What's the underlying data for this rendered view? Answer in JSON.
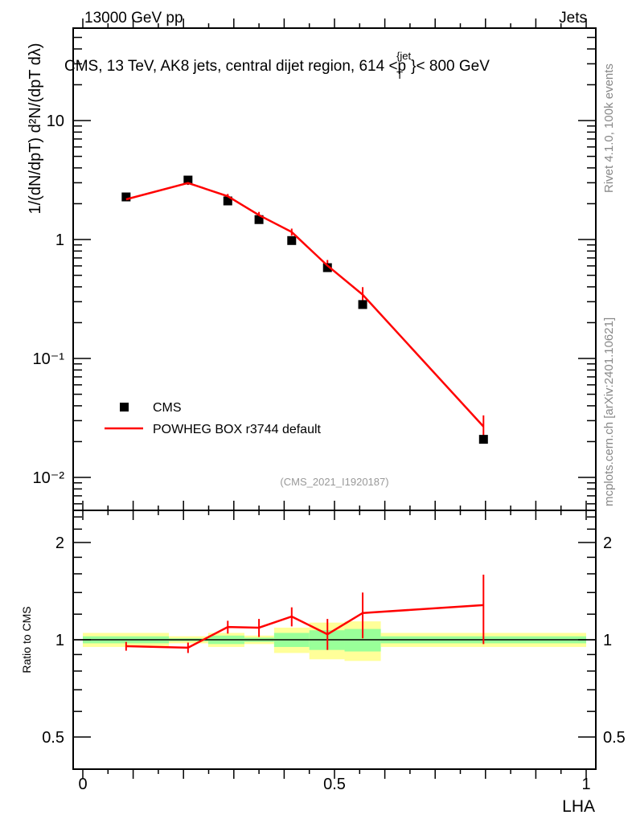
{
  "chart_data": {
    "type": "scatter",
    "header_left": "13000 GeV pp",
    "header_right": "Jets",
    "title": "CMS, 13 TeV, AK8 jets, central dijet region, 614 <p",
    "title_sub": "T",
    "title_sup": "{jet",
    "title_end": "}< 800 GeV",
    "side_label": "Rivet 4.1.0,  100k events",
    "side_label2": "mcplots.cern.ch [arXiv:2401.10621]",
    "analysis_id": "(CMS_2021_I1920187)",
    "ylabel_main": "1/(dN/dpT) d²N/(dpT dλ)",
    "ylabel_ratio": "Ratio to CMS",
    "xlabel": "LHA",
    "xlim": [
      0,
      1
    ],
    "ylim_main": [
      0.0052,
      59
    ],
    "ylim_ratio": [
      0.4,
      2.5
    ],
    "main_yticks": [
      {
        "v": 10,
        "label": "10"
      },
      {
        "v": 1,
        "label": "1"
      },
      {
        "v": 0.1,
        "label": "10⁻¹"
      },
      {
        "v": 0.01,
        "label": "10⁻²"
      }
    ],
    "ratio_yticks": [
      {
        "v": 2,
        "label": "2"
      },
      {
        "v": 1,
        "label": "1"
      },
      {
        "v": 0.5,
        "label": "0.5"
      }
    ],
    "xticks": [
      {
        "v": 0,
        "label": "0"
      },
      {
        "v": 0.5,
        "label": "0.5"
      },
      {
        "v": 1,
        "label": "1"
      }
    ],
    "x": [
      0.086,
      0.209,
      0.288,
      0.35,
      0.415,
      0.486,
      0.556,
      0.796
    ],
    "series": [
      {
        "name": "CMS",
        "color": "#000000",
        "values": [
          2.28,
          3.16,
          2.11,
          1.47,
          0.98,
          0.58,
          0.284,
          0.0209
        ]
      },
      {
        "name": "POWHEG BOX r3744 default",
        "color": "#ff0000",
        "ratio": [
          0.955,
          0.945,
          1.095,
          1.09,
          1.18,
          1.04,
          1.21,
          1.28
        ],
        "ratio_err_up": [
          0.03,
          0.035,
          0.05,
          0.07,
          0.08,
          0.12,
          0.19,
          0.31
        ],
        "ratio_err_down": [
          0.03,
          0.035,
          0.05,
          0.07,
          0.08,
          0.11,
          0.2,
          0.31
        ]
      }
    ],
    "bands": {
      "edges": [
        0,
        0.171,
        0.249,
        0.321,
        0.38,
        0.45,
        0.52,
        0.592,
        1
      ],
      "inner": [
        0.025,
        0.01,
        0.03,
        0.015,
        0.05,
        0.07,
        0.08,
        0.025
      ],
      "outer": [
        0.05,
        0.025,
        0.05,
        0.03,
        0.09,
        0.13,
        0.14,
        0.05
      ],
      "inner_color": "#99ff99",
      "outer_color": "#ffff99"
    }
  }
}
